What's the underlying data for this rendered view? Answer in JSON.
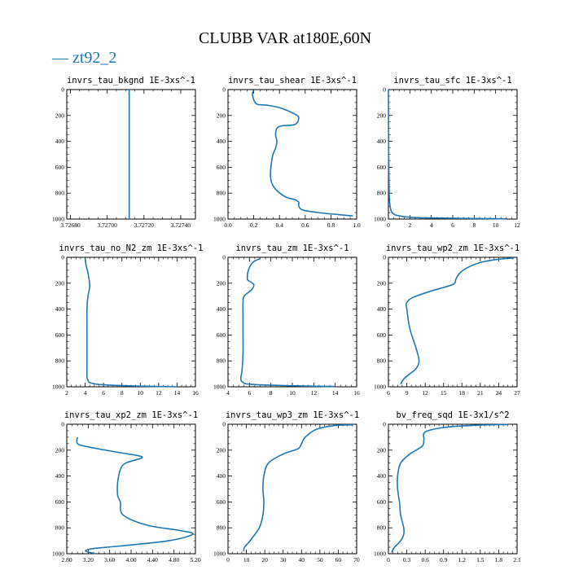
{
  "figure": {
    "title": "CLUBB VAR at180E,60N",
    "legend_label": "zt92_2",
    "line_color": "#1f77b4"
  },
  "chart_data": [
    {
      "type": "line",
      "title": "invrs_tau_bkgnd   1E-3xs^-1",
      "xlim": [
        3.72678,
        3.72748
      ],
      "xticks": [
        "3.72680",
        "3.72700",
        "3.72720",
        "3.72740"
      ],
      "xtick_values": [
        3.7268,
        3.727,
        3.7272,
        3.7274
      ],
      "ylim": [
        1000,
        0
      ],
      "yticks": [
        0,
        200,
        400,
        600,
        800,
        1000
      ],
      "series": [
        {
          "x": [
            3.72712,
            3.72712
          ],
          "y": [
            0,
            1000
          ]
        }
      ]
    },
    {
      "type": "line",
      "title": "invrs_tau_shear   1E-3xs^-1",
      "xlim": [
        0,
        1
      ],
      "xticks": [
        "0.0",
        "0.2",
        "0.4",
        "0.6",
        "0.8",
        "1.0"
      ],
      "xtick_values": [
        0,
        0.2,
        0.4,
        0.6,
        0.8,
        1.0
      ],
      "ylim": [
        1000,
        0
      ],
      "yticks": [
        0,
        200,
        400,
        600,
        800,
        1000
      ],
      "series": [
        {
          "x": [
            0.2,
            0.19,
            0.22,
            0.3,
            0.4,
            0.52,
            0.55,
            0.52,
            0.42,
            0.38,
            0.37,
            0.38,
            0.37,
            0.35,
            0.34,
            0.33,
            0.34,
            0.38,
            0.45,
            0.52,
            0.55,
            0.55,
            0.58,
            0.7,
            0.85,
            0.97
          ],
          "y": [
            5,
            40,
            110,
            120,
            140,
            190,
            220,
            270,
            280,
            300,
            350,
            400,
            450,
            500,
            550,
            650,
            720,
            780,
            830,
            850,
            870,
            900,
            930,
            950,
            965,
            975
          ]
        }
      ]
    },
    {
      "type": "line",
      "title": "invrs_tau_sfc   1E-3xs^-1",
      "xlim": [
        0,
        12
      ],
      "xticks": [
        "0",
        "2",
        "4",
        "6",
        "8",
        "10",
        "12"
      ],
      "xtick_values": [
        0,
        2,
        4,
        6,
        8,
        10,
        12
      ],
      "ylim": [
        1000,
        0
      ],
      "yticks": [
        0,
        200,
        400,
        600,
        800,
        1000
      ],
      "series": [
        {
          "x": [
            0,
            0.01,
            0.02,
            0.05,
            0.1,
            0.2,
            0.4,
            1.0,
            3.0,
            11.0
          ],
          "y": [
            0,
            200,
            500,
            700,
            850,
            920,
            955,
            975,
            990,
            998
          ]
        }
      ]
    },
    {
      "type": "line",
      "title": "invrs_tau_no_N2_zm   1E-3xs^-1",
      "xlim": [
        2,
        16
      ],
      "xticks": [
        "2",
        "4",
        "6",
        "8",
        "10",
        "12",
        "14",
        "16"
      ],
      "xtick_values": [
        2,
        4,
        6,
        8,
        10,
        12,
        14,
        16
      ],
      "ylim": [
        1000,
        0
      ],
      "yticks": [
        0,
        200,
        400,
        600,
        800,
        1000
      ],
      "series": [
        {
          "x": [
            4.0,
            4.1,
            4.3,
            4.5,
            4.3,
            4.2,
            4.2,
            4.2,
            4.2,
            4.2,
            4.3,
            4.6,
            6.0,
            10.0,
            14.0
          ],
          "y": [
            5,
            60,
            120,
            220,
            300,
            400,
            550,
            700,
            850,
            920,
            950,
            970,
            985,
            995,
            1000
          ]
        }
      ]
    },
    {
      "type": "line",
      "title": "invrs_tau_zm   1E-3xs^-1",
      "xlim": [
        4,
        16
      ],
      "xticks": [
        "4",
        "6",
        "8",
        "10",
        "12",
        "14",
        "16"
      ],
      "xtick_values": [
        4,
        6,
        8,
        10,
        12,
        14,
        16
      ],
      "ylim": [
        1000,
        0
      ],
      "yticks": [
        0,
        200,
        400,
        600,
        800,
        1000
      ],
      "series": [
        {
          "x": [
            7.0,
            6.3,
            5.9,
            5.8,
            5.9,
            6.4,
            6.2,
            5.5,
            5.4,
            5.4,
            5.4,
            5.4,
            5.3,
            5.2,
            5.3,
            6.0,
            9.0,
            14.0
          ],
          "y": [
            10,
            40,
            100,
            160,
            180,
            210,
            250,
            300,
            350,
            450,
            600,
            750,
            880,
            930,
            960,
            980,
            990,
            998
          ]
        }
      ]
    },
    {
      "type": "line",
      "title": "invrs_tau_wp2_zm   1E-3xs^-1",
      "xlim": [
        6,
        27
      ],
      "xticks": [
        "6",
        "9",
        "12",
        "15",
        "18",
        "21",
        "24",
        "27"
      ],
      "xtick_values": [
        6,
        9,
        12,
        15,
        18,
        21,
        24,
        27
      ],
      "ylim": [
        1000,
        0
      ],
      "yticks": [
        0,
        200,
        400,
        600,
        800,
        1000
      ],
      "series": [
        {
          "x": [
            26.5,
            24.0,
            21.0,
            18.5,
            17.5,
            17.0,
            16.5,
            13.0,
            10.0,
            9.0,
            9.0,
            9.5,
            10.5,
            11.0,
            10.5,
            9.5,
            8.5,
            8.0
          ],
          "y": [
            5,
            15,
            40,
            90,
            130,
            170,
            210,
            260,
            310,
            350,
            400,
            550,
            700,
            800,
            860,
            900,
            940,
            980
          ]
        }
      ]
    },
    {
      "type": "line",
      "title": "invrs_tau_xp2_zm   1E-3xs^-1",
      "xlim": [
        2.8,
        5.2
      ],
      "xticks": [
        "2.80",
        "3.20",
        "3.60",
        "4.00",
        "4.40",
        "4.80",
        "5.20"
      ],
      "xtick_values": [
        2.8,
        3.2,
        3.6,
        4.0,
        4.4,
        4.8,
        5.2
      ],
      "ylim": [
        1000,
        0
      ],
      "yticks": [
        0,
        200,
        400,
        600,
        800,
        1000
      ],
      "series": [
        {
          "x": [
            3.0,
            3.0,
            3.2,
            3.8,
            4.1,
            4.2,
            3.9,
            3.8,
            3.75,
            3.75,
            3.8,
            3.85,
            4.3,
            4.9,
            5.15,
            4.7,
            3.8,
            3.3,
            3.15,
            3.35
          ],
          "y": [
            100,
            150,
            175,
            220,
            240,
            260,
            300,
            350,
            450,
            550,
            600,
            700,
            780,
            820,
            850,
            900,
            940,
            960,
            980,
            1000
          ]
        }
      ]
    },
    {
      "type": "line",
      "title": "invrs_tau_wp3_zm   1E-3xs^-1",
      "xlim": [
        0,
        70
      ],
      "xticks": [
        "0",
        "10",
        "20",
        "30",
        "40",
        "50",
        "60",
        "70"
      ],
      "xtick_values": [
        0,
        10,
        20,
        30,
        40,
        50,
        60,
        70
      ],
      "ylim": [
        1000,
        0
      ],
      "yticks": [
        0,
        200,
        400,
        600,
        800,
        1000
      ],
      "series": [
        {
          "x": [
            68.0,
            58.0,
            48.0,
            42.0,
            40.0,
            38.0,
            30.0,
            22.0,
            19.5,
            19.0,
            19.5,
            19.0,
            17.0,
            12.0,
            9.0,
            8.5
          ],
          "y": [
            5,
            10,
            40,
            100,
            150,
            190,
            230,
            300,
            400,
            500,
            600,
            700,
            800,
            900,
            950,
            980
          ]
        }
      ]
    },
    {
      "type": "line",
      "title": "bv_freq_sqd   1E-3x1/s^2",
      "xlim": [
        0,
        2.1
      ],
      "xticks": [
        "0",
        "0.3",
        "0.6",
        "0.9",
        "1.2",
        "1.5",
        "1.8",
        "2.1"
      ],
      "xtick_values": [
        0,
        0.3,
        0.6,
        0.9,
        1.2,
        1.5,
        1.8,
        2.1
      ],
      "ylim": [
        1000,
        0
      ],
      "yticks": [
        0,
        200,
        400,
        600,
        800,
        1000
      ],
      "series": [
        {
          "x": [
            1.95,
            1.4,
            0.9,
            0.6,
            0.58,
            0.55,
            0.35,
            0.2,
            0.15,
            0.15,
            0.18,
            0.2,
            0.25,
            0.25,
            0.2,
            0.1,
            0.05
          ],
          "y": [
            2,
            8,
            25,
            60,
            120,
            170,
            230,
            300,
            400,
            500,
            600,
            700,
            800,
            850,
            900,
            950,
            990
          ]
        }
      ]
    }
  ]
}
